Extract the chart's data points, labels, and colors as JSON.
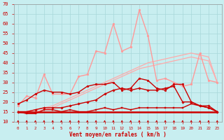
{
  "x": [
    0,
    1,
    2,
    3,
    4,
    5,
    6,
    7,
    8,
    9,
    10,
    11,
    12,
    13,
    14,
    15,
    16,
    17,
    18,
    19,
    20,
    21,
    22,
    23
  ],
  "ylim": [
    10,
    70
  ],
  "yticks": [
    10,
    15,
    20,
    25,
    30,
    35,
    40,
    45,
    50,
    55,
    60,
    65,
    70
  ],
  "xlabel": "Vent moyen/en rafales ( km/h )",
  "bg_color": "#c8eef0",
  "grid_color": "#a8d8da",
  "line_flat": {
    "y": [
      15,
      15,
      15,
      15,
      15,
      15,
      15,
      15,
      15,
      15,
      15,
      15,
      15,
      15,
      15,
      15,
      15,
      15,
      15,
      15,
      15,
      15,
      15,
      15
    ],
    "color": "#cc0000",
    "lw": 1.8,
    "marker": null,
    "ms": 0,
    "zorder": 6
  },
  "line_low": {
    "y": [
      15,
      14,
      14,
      16,
      16,
      15,
      16,
      15,
      15,
      16,
      17,
      16,
      17,
      16,
      17,
      17,
      17,
      17,
      17,
      17,
      19,
      18,
      17,
      15
    ],
    "color": "#cc0000",
    "lw": 1.0,
    "marker": "s",
    "ms": 1.8,
    "zorder": 5
  },
  "line_med": {
    "y": [
      15,
      15,
      16,
      17,
      17,
      17,
      18,
      19,
      20,
      21,
      24,
      26,
      27,
      26,
      27,
      26,
      26,
      27,
      28,
      20,
      20,
      18,
      18,
      15
    ],
    "color": "#cc0000",
    "lw": 1.0,
    "marker": "D",
    "ms": 1.8,
    "zorder": 4
  },
  "line_high": {
    "y": [
      19,
      21,
      24,
      26,
      25,
      25,
      24,
      25,
      28,
      29,
      29,
      30,
      26,
      27,
      32,
      31,
      27,
      26,
      29,
      29,
      20,
      18,
      17,
      15
    ],
    "color": "#cc0000",
    "lw": 1.0,
    "marker": "o",
    "ms": 2.0,
    "zorder": 3
  },
  "line_gust": {
    "y": [
      18,
      23,
      22,
      34,
      24,
      24,
      24,
      33,
      34,
      46,
      45,
      60,
      46,
      48,
      67,
      54,
      31,
      32,
      30,
      28,
      29,
      45,
      31,
      30
    ],
    "color": "#ff9999",
    "lw": 1.0,
    "marker": "o",
    "ms": 2.0,
    "zorder": 2
  },
  "line_trend1": {
    "y": [
      15,
      15,
      16,
      17,
      18,
      20,
      22,
      24,
      26,
      28,
      30,
      32,
      34,
      36,
      38,
      40,
      41,
      42,
      43,
      44,
      45,
      44,
      43,
      30
    ],
    "color": "#ffaaaa",
    "lw": 0.9,
    "marker": null,
    "ms": 0,
    "zorder": 1
  },
  "line_trend2": {
    "y": [
      15,
      15,
      15,
      16,
      17,
      19,
      21,
      23,
      25,
      27,
      29,
      31,
      33,
      35,
      37,
      38,
      39,
      40,
      41,
      42,
      43,
      42,
      41,
      30
    ],
    "color": "#ffaaaa",
    "lw": 0.9,
    "marker": null,
    "ms": 0,
    "zorder": 1
  },
  "arrow_color": "#cc0000",
  "xlabel_color": "#cc0000"
}
